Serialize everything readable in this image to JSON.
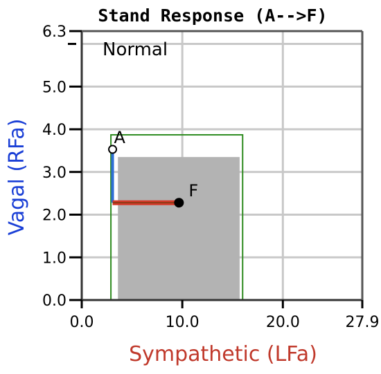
{
  "chart_data": {
    "type": "scatter",
    "title": "Stand Response (A-->F)",
    "xlabel": "Sympathetic (LFa)",
    "ylabel": "Vagal (RFa)",
    "xlim": [
      0,
      27.9
    ],
    "ylim": [
      0,
      6.3
    ],
    "x_ticks": [
      0,
      10,
      20,
      27.9
    ],
    "x_tick_labels": [
      "0.0",
      "10.0",
      "20.0",
      "27.9"
    ],
    "y_ticks": [
      0,
      1,
      2,
      3,
      4,
      5,
      6.3
    ],
    "y_tick_labels": [
      "0.0",
      "1.0",
      "2.0",
      "3.0",
      "4.0",
      "5.0",
      "6.3"
    ],
    "grid": true,
    "zone_label": "Normal",
    "colors": {
      "xlabel": "#c0392b",
      "ylabel": "#1a3fd6",
      "vagal_segment": "#2f6fd6",
      "sympathetic_segment": "#d63a2a",
      "sympathetic_segment_inner": "#8b3a14",
      "normal_box": "#2e8b1f",
      "inner_fill": "#b3b3b3"
    },
    "regions": [
      {
        "name": "outer",
        "x": [
          2.9,
          16.0
        ],
        "y": [
          0,
          3.87
        ],
        "style": "outline"
      },
      {
        "name": "inner",
        "x": [
          3.6,
          15.7
        ],
        "y": [
          0,
          3.35
        ],
        "style": "filled"
      }
    ],
    "points": [
      {
        "label": "A",
        "x": 3.0,
        "y": 3.53,
        "marker": "open"
      },
      {
        "label": "F",
        "x": 9.6,
        "y": 2.28,
        "marker": "filled"
      }
    ],
    "vagal_change": {
      "from": 3.53,
      "to": 2.28
    },
    "sympathetic_change": {
      "from": 3.0,
      "to": 9.6
    }
  }
}
